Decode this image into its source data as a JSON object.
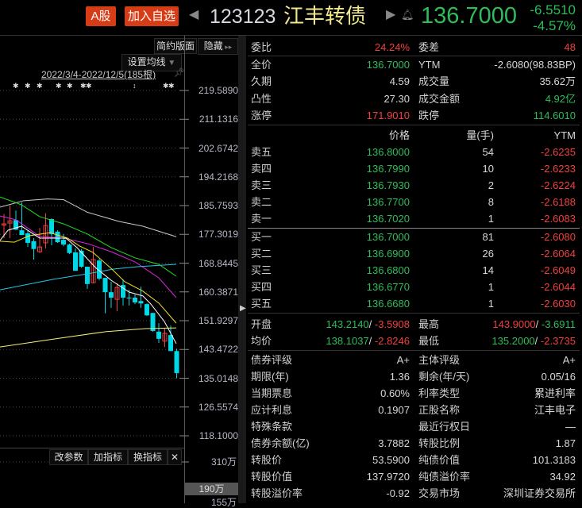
{
  "header": {
    "a_share_button": "A股",
    "add_watch_button": "加入自选",
    "code": "123123",
    "name": "江丰转债",
    "price": "136.7000",
    "change": "-6.5510",
    "change_pct": "-4.57%"
  },
  "chart": {
    "simple_layout_button": "简约版面",
    "hide_button": "隐藏",
    "set_ma_button": "设置均线",
    "date_range": "2022/3/4-2022/12/5(185根)",
    "y_ticks": [
      "219.5890",
      "211.1316",
      "202.6742",
      "194.2168",
      "185.7593",
      "177.3019",
      "168.8445",
      "160.3871",
      "151.9297",
      "143.4722",
      "135.0148",
      "126.5574",
      "118.1000"
    ],
    "volume_ticks": [
      "310万",
      "190万",
      "155万"
    ],
    "indicator_buttons": {
      "change_params": "改参数",
      "add_indicator": "加指标",
      "switch_indicator": "换指标"
    },
    "colors": {
      "up": "#f0403f",
      "down": "#00d8e8"
    },
    "candles": [
      [
        180.0,
        180.4,
        183.3,
        176.2
      ],
      [
        180.6,
        181.3,
        185.7,
        176.2
      ],
      [
        181.5,
        178.7,
        184.3,
        178.5
      ],
      [
        178.5,
        177.1,
        186.7,
        177.1
      ],
      [
        177.6,
        174.8,
        178.5,
        173.6
      ],
      [
        175.3,
        173.0,
        176.2,
        169.9
      ],
      [
        172.2,
        173.6,
        179.2,
        171.8
      ],
      [
        174.8,
        179.9,
        183.5,
        173.2
      ],
      [
        181.8,
        177.4,
        182.0,
        174.1
      ],
      [
        178.1,
        175.0,
        178.5,
        174.8
      ],
      [
        175.7,
        174.3,
        177.4,
        173.8
      ],
      [
        174.3,
        171.8,
        174.6,
        171.5
      ],
      [
        172.0,
        166.6,
        173.2,
        166.6
      ],
      [
        172.5,
        167.8,
        173.0,
        167.5
      ],
      [
        167.8,
        162.7,
        167.8,
        161.3
      ],
      [
        163.1,
        169.9,
        173.6,
        162.9
      ],
      [
        169.6,
        164.3,
        170.1,
        163.8
      ],
      [
        164.5,
        160.3,
        164.5,
        154.1
      ],
      [
        160.3,
        158.7,
        163.4,
        155.7
      ],
      [
        158.2,
        161.7,
        162.9,
        154.7
      ],
      [
        162.4,
        158.7,
        164.1,
        156.4
      ],
      [
        158.7,
        158.5,
        161.0,
        156.4
      ],
      [
        158.7,
        157.3,
        159.6,
        156.8
      ],
      [
        157.7,
        157.0,
        161.9,
        155.7
      ],
      [
        156.8,
        153.5,
        157.0,
        153.3
      ],
      [
        154.2,
        148.9,
        154.2,
        148.7
      ],
      [
        148.7,
        146.6,
        151.2,
        145.4
      ],
      [
        145.9,
        148.2,
        149.8,
        144.2
      ],
      [
        147.7,
        143.0,
        150.5,
        143.0
      ],
      [
        143.0,
        136.5,
        143.7,
        135.0
      ]
    ],
    "ma_lines": [
      {
        "color": "#c8c8c8",
        "points": [
          [
            -0.67,
            185.3
          ],
          [
            3.33,
            187.2
          ],
          [
            7.33,
            187.7
          ],
          [
            10,
            187.5
          ],
          [
            14,
            183.8
          ],
          [
            19.33,
            181.1
          ],
          [
            23.33,
            179.7
          ],
          [
            28.93,
            176.6
          ]
        ]
      },
      {
        "color": "#22e022",
        "points": [
          [
            -0.67,
            188.3
          ],
          [
            2.93,
            186.0
          ],
          [
            6,
            182.5
          ],
          [
            10,
            180.4
          ],
          [
            14,
            177.4
          ],
          [
            18,
            173.4
          ],
          [
            22,
            170.4
          ],
          [
            26,
            168.5
          ],
          [
            28.93,
            165.0
          ]
        ]
      },
      {
        "color": "#e020e0",
        "points": [
          [
            -0.67,
            182.7
          ],
          [
            2,
            181.6
          ],
          [
            6,
            176.7
          ],
          [
            10,
            176.2
          ],
          [
            14,
            174.6
          ],
          [
            18,
            172.2
          ],
          [
            22,
            169.2
          ],
          [
            26,
            164.5
          ],
          [
            28.93,
            158.7
          ]
        ]
      },
      {
        "color": "#20c8e8",
        "points": [
          [
            -0.67,
            161.0
          ],
          [
            8.27,
            164.1
          ],
          [
            14,
            165.7
          ],
          [
            18.4,
            167.1
          ],
          [
            22.4,
            167.8
          ],
          [
            28.93,
            168.5
          ]
        ]
      },
      {
        "color": "#f0f080",
        "points": [
          [
            -0.67,
            144.2
          ],
          [
            8.27,
            146.5
          ],
          [
            17.07,
            148.7
          ],
          [
            23.73,
            149.6
          ],
          [
            28.93,
            149.8
          ]
        ]
      },
      {
        "color": "#f0e020",
        "points": [
          [
            -0.67,
            175.3
          ],
          [
            1.73,
            175.0
          ],
          [
            4.27,
            176.9
          ],
          [
            7.73,
            177.8
          ],
          [
            10.67,
            176.2
          ],
          [
            12.67,
            173.9
          ],
          [
            14.93,
            172.0
          ],
          [
            18,
            167.3
          ],
          [
            20.27,
            163.4
          ],
          [
            23.33,
            160.6
          ],
          [
            26,
            157.1
          ],
          [
            28.93,
            151.2
          ]
        ]
      },
      {
        "color": "#ffffff",
        "points": [
          [
            -0.67,
            175.5
          ],
          [
            0.67,
            178.5
          ],
          [
            2.93,
            179.7
          ],
          [
            6,
            176.2
          ],
          [
            10.4,
            176.2
          ],
          [
            12.27,
            173.4
          ],
          [
            15.33,
            167.6
          ],
          [
            18,
            163.8
          ],
          [
            21.07,
            160.3
          ],
          [
            23.33,
            159.2
          ],
          [
            24.67,
            156.8
          ],
          [
            26.93,
            151.7
          ],
          [
            28.93,
            145.2
          ]
        ]
      }
    ]
  },
  "quote": {
    "row1": [
      {
        "label": "委比",
        "value": "24.24%",
        "color": "r"
      },
      {
        "label": "委差",
        "value": "48",
        "color": "r"
      }
    ],
    "stats": [
      [
        {
          "label": "全价",
          "value": "136.7000",
          "color": "g"
        },
        {
          "label": "YTM",
          "value": "-2.6080(98.83BP)",
          "color": "w"
        }
      ],
      [
        {
          "label": "久期",
          "value": "4.59",
          "color": "w"
        },
        {
          "label": "成交量",
          "value": "35.62万",
          "color": "w"
        }
      ],
      [
        {
          "label": "凸性",
          "value": "27.30",
          "color": "w"
        },
        {
          "label": "成交金额",
          "value": "4.92亿",
          "color": "g"
        }
      ],
      [
        {
          "label": "涨停",
          "value": "171.9010",
          "color": "r"
        },
        {
          "label": "跌停",
          "value": "114.6010",
          "color": "g"
        }
      ]
    ],
    "book_header": {
      "price": "价格",
      "qty": "量(手)",
      "ytm": "YTM"
    },
    "asks": [
      {
        "label": "卖五",
        "price": "136.8000",
        "qty": "54",
        "ytm": "-2.6235"
      },
      {
        "label": "卖四",
        "price": "136.7990",
        "qty": "10",
        "ytm": "-2.6233"
      },
      {
        "label": "卖三",
        "price": "136.7930",
        "qty": "2",
        "ytm": "-2.6224"
      },
      {
        "label": "卖二",
        "price": "136.7700",
        "qty": "8",
        "ytm": "-2.6188"
      },
      {
        "label": "卖一",
        "price": "136.7020",
        "qty": "1",
        "ytm": "-2.6083"
      }
    ],
    "bids": [
      {
        "label": "买一",
        "price": "136.7000",
        "qty": "81",
        "ytm": "-2.6080"
      },
      {
        "label": "买二",
        "price": "136.6900",
        "qty": "26",
        "ytm": "-2.6064"
      },
      {
        "label": "买三",
        "price": "136.6800",
        "qty": "14",
        "ytm": "-2.6049"
      },
      {
        "label": "买四",
        "price": "136.6770",
        "qty": "1",
        "ytm": "-2.6044"
      },
      {
        "label": "买五",
        "price": "136.6680",
        "qty": "1",
        "ytm": "-2.6030"
      }
    ],
    "ohlc": [
      [
        {
          "label": "开盘",
          "v1": "143.2140",
          "c1": "g",
          "v2": "-3.5908",
          "c2": "r"
        },
        {
          "label": "最高",
          "v1": "143.9000",
          "c1": "r",
          "v2": "-3.6911",
          "c2": "g"
        }
      ],
      [
        {
          "label": "均价",
          "v1": "138.1037",
          "c1": "g",
          "v2": "-2.8246",
          "c2": "r"
        },
        {
          "label": "最低",
          "v1": "135.2000",
          "c1": "g",
          "v2": "-2.3735",
          "c2": "r"
        }
      ]
    ],
    "info": [
      [
        {
          "label": "债券评级",
          "value": "A+"
        },
        {
          "label": "主体评级",
          "value": "A+"
        }
      ],
      [
        {
          "label": "期限(年)",
          "value": "1.36"
        },
        {
          "label": "剩余(年/天)",
          "value": "0.05/16"
        }
      ],
      [
        {
          "label": "当期票息",
          "value": "0.60%"
        },
        {
          "label": "利率类型",
          "value": "累进利率"
        }
      ],
      [
        {
          "label": "应计利息",
          "value": "0.1907"
        },
        {
          "label": "正股名称",
          "value": "江丰电子"
        }
      ],
      [
        {
          "label": "特殊条款",
          "value": ""
        },
        {
          "label": "最近行权日",
          "value": "—"
        }
      ],
      [
        {
          "label": "债券余额(亿)",
          "value": "3.7882"
        },
        {
          "label": "转股比例",
          "value": "1.87"
        }
      ],
      [
        {
          "label": "转股价",
          "value": "53.5900"
        },
        {
          "label": "纯债价值",
          "value": "101.3183"
        }
      ],
      [
        {
          "label": "转股价值",
          "value": "137.9720"
        },
        {
          "label": "纯债溢价率",
          "value": "34.92"
        }
      ],
      [
        {
          "label": "转股溢价率",
          "value": "-0.92"
        },
        {
          "label": "交易市场",
          "value": "深圳证券交易所"
        }
      ]
    ]
  }
}
